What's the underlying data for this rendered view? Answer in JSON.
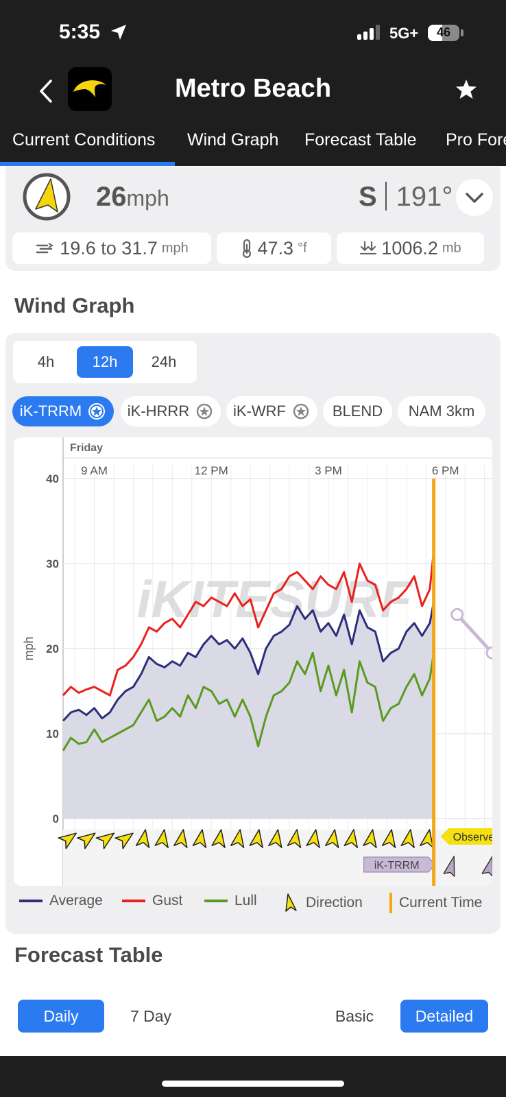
{
  "status_bar": {
    "time": "5:35",
    "network": "5G+",
    "battery": "46",
    "battery_level": 0.46
  },
  "header": {
    "title": "Metro Beach"
  },
  "tabs": [
    {
      "label": "Current Conditions",
      "active": true
    },
    {
      "label": "Wind Graph"
    },
    {
      "label": "Forecast Table"
    },
    {
      "label": "Pro Fore"
    }
  ],
  "conditions": {
    "speed": "26",
    "speed_unit": "mph",
    "direction_letter": "S",
    "direction_deg": "191°",
    "range": "19.6 to 31.7",
    "range_unit": "mph",
    "temp": "47.3",
    "temp_unit": "°f",
    "pressure": "1006.2",
    "pressure_unit": "mb"
  },
  "wind_graph": {
    "title": "Wind Graph",
    "ranges": [
      {
        "label": "4h"
      },
      {
        "label": "12h",
        "active": true
      },
      {
        "label": "24h"
      }
    ],
    "models": [
      {
        "label": "iK-TRRM",
        "active": true,
        "star": true
      },
      {
        "label": "iK-HRRR",
        "star": true
      },
      {
        "label": "iK-WRF",
        "star": true
      },
      {
        "label": "BLEND"
      },
      {
        "label": "NAM 3km"
      }
    ],
    "day_label": "Friday",
    "watermark": "iKITESURF",
    "observed_label": "Observe",
    "model_tag": "iK-TRRM",
    "legend": [
      {
        "label": "Average",
        "color": "#2e2e7a"
      },
      {
        "label": "Gust",
        "color": "#e8221d"
      },
      {
        "label": "Lull",
        "color": "#5a9a1f"
      },
      {
        "label": "Direction",
        "color": "#f5e011"
      },
      {
        "label": "Current Time",
        "color": "#f2a817"
      }
    ]
  },
  "chart_data": {
    "type": "line",
    "ylabel": "mph",
    "ylim": [
      0,
      40
    ],
    "y_ticks": [
      0,
      10,
      20,
      30,
      40
    ],
    "x_ticks": [
      "9 AM",
      "12 PM",
      "3 PM",
      "6 PM"
    ],
    "x_hours": [
      9,
      12,
      15,
      18
    ],
    "xlim": [
      8.2,
      19.2
    ],
    "current_time": 17.7,
    "x": [
      8.2,
      8.4,
      8.6,
      8.8,
      9.0,
      9.2,
      9.4,
      9.6,
      9.8,
      10.0,
      10.2,
      10.4,
      10.6,
      10.8,
      11.0,
      11.2,
      11.4,
      11.6,
      11.8,
      12.0,
      12.2,
      12.4,
      12.6,
      12.8,
      13.0,
      13.2,
      13.4,
      13.6,
      13.8,
      14.0,
      14.2,
      14.4,
      14.6,
      14.8,
      15.0,
      15.2,
      15.4,
      15.6,
      15.8,
      16.0,
      16.2,
      16.4,
      16.6,
      16.8,
      17.0,
      17.2,
      17.4,
      17.6,
      17.7
    ],
    "series": [
      {
        "name": "Average",
        "color": "#2e2e7a",
        "values": [
          11.5,
          12.5,
          12.8,
          12.2,
          13.0,
          11.8,
          12.5,
          14.0,
          15.0,
          15.5,
          17.0,
          19.0,
          18.2,
          17.8,
          18.5,
          18.0,
          19.5,
          19.0,
          20.5,
          21.5,
          20.5,
          21.0,
          20.0,
          21.2,
          19.5,
          17.0,
          20.0,
          21.5,
          22.0,
          22.8,
          25.0,
          23.5,
          24.5,
          22.0,
          23.0,
          21.5,
          24.0,
          20.5,
          24.5,
          22.5,
          22.0,
          18.5,
          19.5,
          20.0,
          22.0,
          23.0,
          21.5,
          23.0,
          25.5
        ]
      },
      {
        "name": "Gust",
        "color": "#e8221d",
        "values": [
          14.5,
          15.5,
          14.8,
          15.2,
          15.5,
          15.0,
          14.5,
          17.5,
          18.0,
          19.0,
          20.5,
          22.5,
          22.0,
          23.0,
          23.5,
          22.5,
          24.0,
          25.5,
          25.0,
          26.0,
          25.5,
          25.0,
          26.5,
          25.0,
          25.8,
          22.5,
          24.5,
          26.5,
          27.0,
          28.5,
          29.0,
          28.0,
          27.0,
          28.5,
          27.5,
          27.0,
          29.0,
          25.5,
          30.0,
          28.0,
          27.5,
          24.5,
          25.5,
          26.0,
          27.0,
          28.5,
          25.0,
          27.0,
          31.5
        ]
      },
      {
        "name": "Lull",
        "color": "#5a9a1f",
        "values": [
          8.0,
          9.5,
          8.8,
          9.0,
          10.5,
          9.0,
          9.5,
          10.0,
          10.5,
          11.0,
          12.5,
          14.0,
          11.5,
          12.0,
          13.0,
          12.0,
          14.5,
          13.0,
          15.5,
          15.0,
          13.5,
          14.0,
          12.0,
          14.0,
          12.0,
          8.5,
          12.0,
          14.5,
          15.0,
          16.0,
          18.5,
          17.0,
          19.5,
          15.0,
          18.0,
          14.5,
          17.5,
          12.5,
          18.5,
          16.0,
          15.5,
          11.5,
          13.0,
          13.5,
          15.5,
          17.0,
          14.5,
          16.5,
          19.5
        ]
      },
      {
        "name": "Forecast",
        "color": "#c9b8d6",
        "x": [
          18.3,
          19.2
        ],
        "values": [
          24.0,
          19.5
        ]
      }
    ],
    "direction_arrows": 20
  },
  "forecast_table": {
    "title": "Forecast Table",
    "period": [
      {
        "label": "Daily",
        "active": true
      },
      {
        "label": "7 Day"
      }
    ],
    "detail": [
      {
        "label": "Basic"
      },
      {
        "label": "Detailed",
        "active": true
      }
    ]
  }
}
